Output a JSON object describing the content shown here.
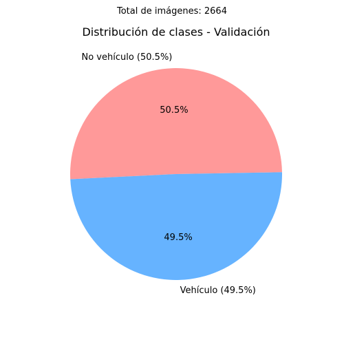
{
  "chart_data": {
    "type": "pie",
    "suptitle": "Total de imágenes: 2664",
    "title": "Distribución de clases - Validación",
    "slices": [
      {
        "label": "No vehículo (50.5%)",
        "percent_label": "50.5%",
        "value": 50.5,
        "color": "#ff9999"
      },
      {
        "label": "Vehículo (49.5%)",
        "percent_label": "49.5%",
        "value": 49.5,
        "color": "#66b3ff"
      }
    ]
  }
}
